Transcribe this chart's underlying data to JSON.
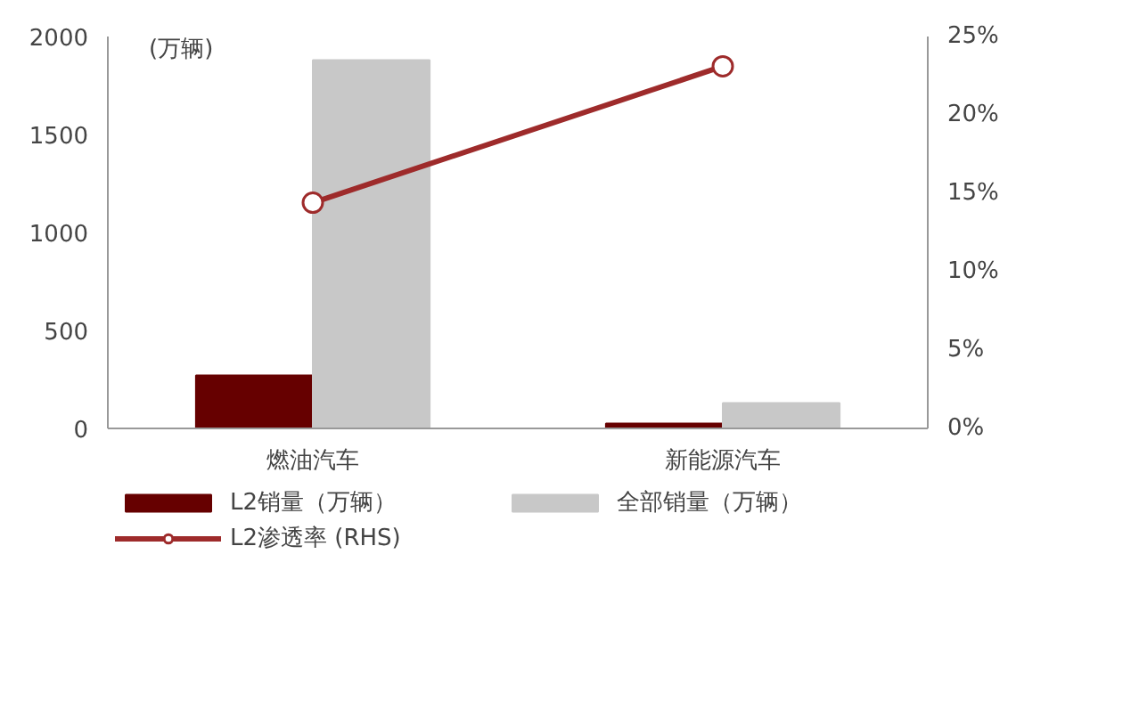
{
  "chart_data": {
    "type": "bar",
    "ylabel": "(万辆)",
    "categories": [
      "燃油汽车",
      "新能源汽车"
    ],
    "series": [
      {
        "name": "L2销量（万辆）",
        "color": "#660000",
        "values": [
          270,
          25
        ]
      },
      {
        "name": "全部销量（万辆）",
        "color": "#c8c8c8",
        "values": [
          1880,
          130
        ]
      },
      {
        "name": "L2渗透率 (RHS)",
        "type": "line",
        "axis": "y2",
        "color": "#9e2b2b",
        "values": [
          14.4,
          23.1
        ],
        "marker": "circle"
      }
    ],
    "ylim": [
      0,
      2000
    ],
    "yticks": [
      0,
      500,
      1000,
      1500,
      2000
    ],
    "y2lim": [
      0,
      25
    ],
    "y2ticks": [
      {
        "value": 0,
        "label": "0%"
      },
      {
        "value": 5,
        "label": "5%"
      },
      {
        "value": 10,
        "label": "10%"
      },
      {
        "value": 15,
        "label": "15%"
      },
      {
        "value": 20,
        "label": "20%"
      },
      {
        "value": 25,
        "label": "25%"
      }
    ],
    "grid": false,
    "legend": "bottom"
  }
}
